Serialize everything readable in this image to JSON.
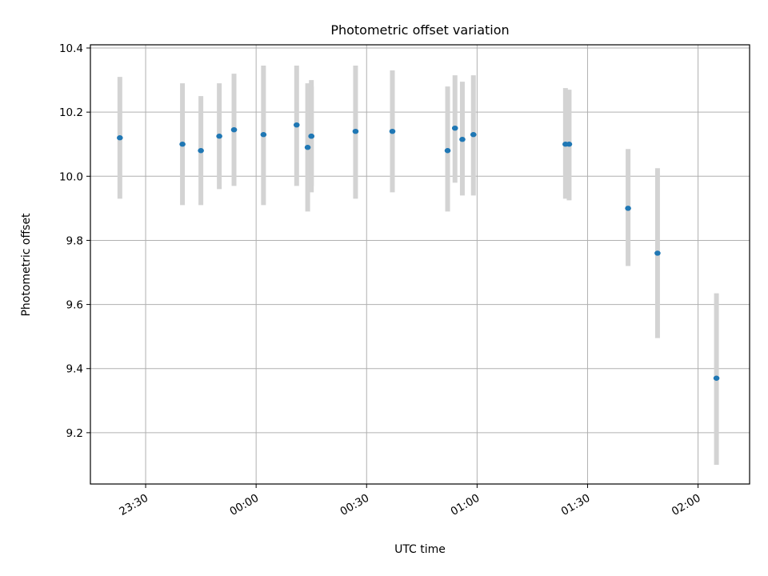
{
  "chart_data": {
    "type": "scatter",
    "title": "Photometric offset variation",
    "xlabel": "UTC time",
    "ylabel": "Photometric offset",
    "x_unit": "UTC time (HH:MM)",
    "xlim": [
      "23:15",
      "02:14"
    ],
    "ylim": [
      9.04,
      10.41
    ],
    "x_ticks": [
      "23:30",
      "00:00",
      "00:30",
      "01:00",
      "01:30",
      "02:00"
    ],
    "y_ticks": [
      9.2,
      9.4,
      9.6,
      9.8,
      10.0,
      10.2,
      10.4
    ],
    "grid": true,
    "marker_color": "#1f77b4",
    "errorbar_color": "#d3d3d3",
    "series": [
      {
        "points": [
          {
            "x": "23:23",
            "y": 10.12,
            "ylow": 9.93,
            "yhigh": 10.31
          },
          {
            "x": "23:40",
            "y": 10.1,
            "ylow": 9.91,
            "yhigh": 10.29
          },
          {
            "x": "23:45",
            "y": 10.08,
            "ylow": 9.91,
            "yhigh": 10.25
          },
          {
            "x": "23:50",
            "y": 10.125,
            "ylow": 9.96,
            "yhigh": 10.29
          },
          {
            "x": "23:54",
            "y": 10.145,
            "ylow": 9.97,
            "yhigh": 10.32
          },
          {
            "x": "00:02",
            "y": 10.13,
            "ylow": 9.91,
            "yhigh": 10.345
          },
          {
            "x": "00:11",
            "y": 10.16,
            "ylow": 9.97,
            "yhigh": 10.345
          },
          {
            "x": "00:14",
            "y": 10.09,
            "ylow": 9.89,
            "yhigh": 10.29
          },
          {
            "x": "00:15",
            "y": 10.125,
            "ylow": 9.95,
            "yhigh": 10.3
          },
          {
            "x": "00:15",
            "y": 10.125,
            "ylow": 9.97,
            "yhigh": 10.28
          },
          {
            "x": "00:27",
            "y": 10.14,
            "ylow": 9.93,
            "yhigh": 10.345
          },
          {
            "x": "00:37",
            "y": 10.14,
            "ylow": 9.95,
            "yhigh": 10.33
          },
          {
            "x": "00:52",
            "y": 10.08,
            "ylow": 9.89,
            "yhigh": 10.28
          },
          {
            "x": "00:54",
            "y": 10.15,
            "ylow": 9.98,
            "yhigh": 10.315
          },
          {
            "x": "00:56",
            "y": 10.115,
            "ylow": 9.94,
            "yhigh": 10.295
          },
          {
            "x": "00:59",
            "y": 10.13,
            "ylow": 9.94,
            "yhigh": 10.315
          },
          {
            "x": "01:24",
            "y": 10.1,
            "ylow": 9.93,
            "yhigh": 10.275
          },
          {
            "x": "01:25",
            "y": 10.1,
            "ylow": 9.925,
            "yhigh": 10.27
          },
          {
            "x": "01:41",
            "y": 9.9,
            "ylow": 9.72,
            "yhigh": 10.085
          },
          {
            "x": "01:49",
            "y": 9.76,
            "ylow": 9.495,
            "yhigh": 10.025
          },
          {
            "x": "02:05",
            "y": 9.37,
            "ylow": 9.1,
            "yhigh": 9.635
          }
        ]
      }
    ]
  }
}
